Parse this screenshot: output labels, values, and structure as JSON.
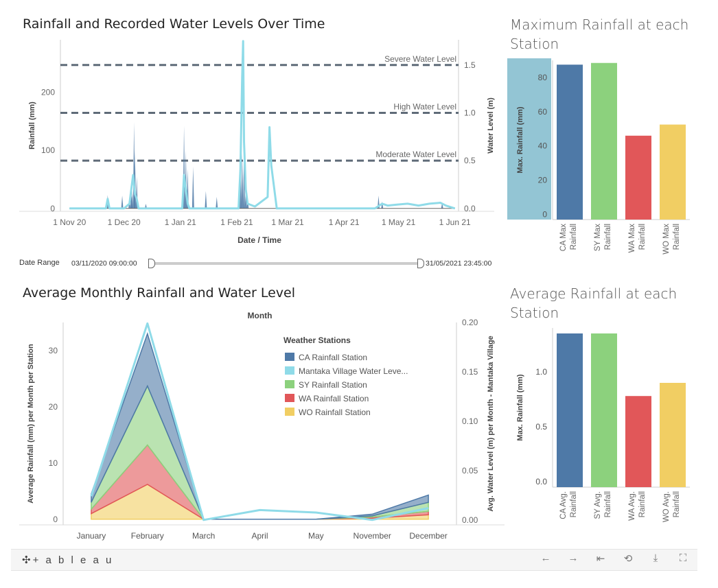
{
  "titles": {
    "rainfall_time": "Rainfall and Recorded Water Levels Over Time",
    "max_rainfall": "Maximum Rainfall at each Station",
    "monthly": "Average Monthly Rainfall and Water Level",
    "avg_rainfall": "Average Rainfall at each Station"
  },
  "date_range": {
    "label": "Date Range",
    "start": "03/11/2020 09:00:00",
    "end": "31/05/2021 23:45:00",
    "start_fraction": 0.0,
    "end_fraction": 1.0
  },
  "footer": {
    "logo": "+ a b l e a u",
    "icons": [
      "tableau-logo-icon",
      "undo-icon",
      "redo-icon",
      "revert-icon",
      "share-icon",
      "download-icon",
      "fullscreen-icon"
    ]
  },
  "colors": {
    "CA": "#4e79a7",
    "SY": "#8cd17d",
    "WA": "#e15759",
    "WO": "#f1ce63",
    "water": "#8fdbe8",
    "threshold": "#5f6b78",
    "highlight": "#93c5d4"
  },
  "chart_data": [
    {
      "type": "line",
      "xlabel": "Date / Time",
      "ylabel": "Rainfall (mm)",
      "ylabel_right": "Water Level (m)",
      "x_ticks": [
        "1 Nov 20",
        "1 Dec 20",
        "1 Jan 21",
        "1 Feb 21",
        "1 Mar 21",
        "1 Apr 21",
        "1 May 21",
        "1 Jun 21"
      ],
      "x_tick_days": [
        0,
        30,
        61,
        92,
        120,
        151,
        181,
        212
      ],
      "x_range_days": [
        -5,
        214
      ],
      "y_ticks": [
        0,
        100,
        200
      ],
      "ylim": [
        -5,
        290
      ],
      "y2_ticks": [
        0.0,
        0.5,
        1.0,
        1.5
      ],
      "y2_ticks_labels": [
        "0.0",
        "0.5",
        "1.0",
        "1.5"
      ],
      "y2lim": [
        -0.03,
        1.7639
      ],
      "thresholds": [
        {
          "label": "Severe Water Level",
          "value": 1.5
        },
        {
          "label": "High Water Level",
          "value": 1.0
        },
        {
          "label": "Moderate Water Level",
          "value": 0.5
        }
      ],
      "rainfall_spikes": [
        {
          "day": 21,
          "value": 23
        },
        {
          "day": 29,
          "value": 22
        },
        {
          "day": 33,
          "value": 20
        },
        {
          "day": 34,
          "value": 26
        },
        {
          "day": 34.5,
          "value": 30
        },
        {
          "day": 35.5,
          "value": 148
        },
        {
          "day": 36,
          "value": 100
        },
        {
          "day": 37,
          "value": 55
        },
        {
          "day": 42,
          "value": 8
        },
        {
          "day": 63,
          "value": 142
        },
        {
          "day": 64,
          "value": 100
        },
        {
          "day": 65,
          "value": 68
        },
        {
          "day": 68,
          "value": 72
        },
        {
          "day": 75,
          "value": 30
        },
        {
          "day": 81,
          "value": 20
        },
        {
          "day": 94,
          "value": 140
        },
        {
          "day": 95,
          "value": 95
        },
        {
          "day": 96,
          "value": 88
        },
        {
          "day": 97,
          "value": 30
        },
        {
          "day": 98,
          "value": 20
        },
        {
          "day": 170,
          "value": 22
        },
        {
          "day": 172,
          "value": 12
        },
        {
          "day": 205,
          "value": 10
        }
      ],
      "water_level_series": {
        "name": "Mantaka Village Water Level",
        "points": [
          [
            0,
            0.0
          ],
          [
            20,
            0.0
          ],
          [
            21,
            0.1
          ],
          [
            22,
            0.0
          ],
          [
            30,
            0.0
          ],
          [
            33,
            0.05
          ],
          [
            35,
            0.35
          ],
          [
            36,
            0.15
          ],
          [
            37,
            0.1
          ],
          [
            38,
            0.0
          ],
          [
            62,
            0.0
          ],
          [
            63,
            0.35
          ],
          [
            64,
            0.2
          ],
          [
            65,
            0.05
          ],
          [
            66,
            0.0
          ],
          [
            93,
            0.0
          ],
          [
            94,
            0.4
          ],
          [
            95,
            1.38
          ],
          [
            95.5,
            1.75
          ],
          [
            96,
            0.7
          ],
          [
            97,
            0.2
          ],
          [
            98,
            0.05
          ],
          [
            102,
            0.02
          ],
          [
            109,
            0.12
          ],
          [
            110,
            0.85
          ],
          [
            111,
            0.45
          ],
          [
            114,
            0.0
          ],
          [
            168,
            0.0
          ],
          [
            172,
            0.05
          ],
          [
            175,
            0.03
          ],
          [
            180,
            0.04
          ],
          [
            186,
            0.05
          ],
          [
            192,
            0.03
          ],
          [
            198,
            0.05
          ],
          [
            204,
            0.06
          ],
          [
            207,
            0.03
          ],
          [
            212,
            0.0
          ]
        ]
      }
    },
    {
      "type": "bar",
      "ylabel": "Max. Rainfall (mm)",
      "categories": [
        [
          "CA Max",
          "Rainfall"
        ],
        [
          "SY Max",
          "Rainfall"
        ],
        [
          "WA Max",
          "Rainfall"
        ],
        [
          "WO Max",
          "Rainfall"
        ]
      ],
      "values": [
        87.5,
        88.5,
        46,
        52.5
      ],
      "colors": [
        "#4e79a7",
        "#8cd17d",
        "#e15759",
        "#f1ce63"
      ],
      "y_ticks": [
        0,
        20,
        40,
        60,
        80
      ],
      "ylim": [
        -3,
        90
      ]
    },
    {
      "type": "area",
      "xlabel": "Month",
      "ylabel": "Average Rainfall (mm) per Month per Station",
      "ylabel_right": "Avg. Water Level (m) per Month - Mantaka Village",
      "categories": [
        "January",
        "February",
        "March",
        "April",
        "May",
        "November",
        "December"
      ],
      "y_ticks": [
        0,
        10,
        20,
        30
      ],
      "ylim": [
        -1,
        35
      ],
      "y2_ticks": [
        0.0,
        0.05,
        0.1,
        0.15,
        0.2
      ],
      "y2_ticks_labels": [
        "0.00",
        "0.05",
        "0.10",
        "0.15",
        "0.20"
      ],
      "y2lim": [
        -0.005,
        0.2
      ],
      "legend_title": "Weather Stations",
      "legend": [
        {
          "name": "CA Rainfall Station",
          "color": "#4e79a7"
        },
        {
          "name": "Mantaka Village Water Leve...",
          "color": "#8fdbe8"
        },
        {
          "name": "SY Rainfall Station",
          "color": "#8cd17d"
        },
        {
          "name": "WA Rainfall Station",
          "color": "#e15759"
        },
        {
          "name": "WO Rainfall Station",
          "color": "#f1ce63"
        }
      ],
      "stack_order": [
        "WO",
        "WA",
        "SY",
        "CA"
      ],
      "series": [
        {
          "key": "WO",
          "values": [
            1.0,
            6.2,
            0.0,
            0.0,
            0.0,
            0.2,
            0.8
          ]
        },
        {
          "key": "WA",
          "values": [
            0.8,
            7.0,
            0.0,
            0.0,
            0.0,
            0.2,
            0.6
          ]
        },
        {
          "key": "SY",
          "values": [
            1.2,
            10.5,
            0.0,
            0.0,
            0.0,
            0.2,
            1.6
          ]
        },
        {
          "key": "CA",
          "values": [
            1.5,
            9.3,
            0.0,
            0.0,
            0.0,
            0.3,
            1.3
          ]
        }
      ],
      "water_level": [
        0.024,
        0.199,
        0.0,
        0.01,
        0.0075,
        0.0,
        0.012
      ]
    },
    {
      "type": "bar",
      "ylabel": "Max. Rainfall (mm)",
      "categories": [
        [
          "CA Avg.",
          "Rainfall"
        ],
        [
          "SY Avg.",
          "Rainfall"
        ],
        [
          "WA Avg.",
          "Rainfall"
        ],
        [
          "WO Avg.",
          "Rainfall"
        ]
      ],
      "values": [
        1.35,
        1.35,
        0.78,
        0.9
      ],
      "colors": [
        "#4e79a7",
        "#8cd17d",
        "#e15759",
        "#f1ce63"
      ],
      "y_ticks": [
        0.0,
        0.5,
        1.0
      ],
      "y_ticks_labels": [
        "0.0",
        "0.5",
        "1.0"
      ],
      "ylim": [
        -0.05,
        1.4
      ]
    }
  ]
}
